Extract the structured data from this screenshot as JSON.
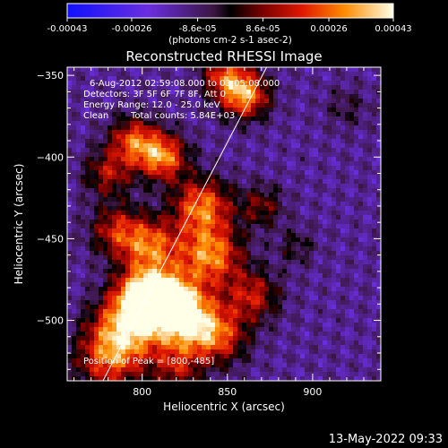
{
  "chart_data": {
    "type": "heatmap",
    "title": "Reconstructed RHESSI Image",
    "xlabel": "Heliocentric X (arcsec)",
    "ylabel": "Heliocentric Y (arcsec)",
    "xlim": [
      756,
      940
    ],
    "ylim": [
      -537,
      -345
    ],
    "x_ticks": [
      800,
      850,
      900
    ],
    "y_ticks": [
      -350,
      -400,
      -450,
      -500
    ],
    "colorbar": {
      "ticks": [
        -0.00043,
        -0.00026,
        -8.6e-05,
        8.6e-05,
        0.00026,
        0.00043
      ],
      "tick_labels": [
        "-0.00043",
        "-0.00026",
        "-8.6e-05",
        "8.6e-05",
        "0.00026",
        "0.00043"
      ],
      "unit_label": "(photons cm-2 s-1 asec-2)",
      "range": [
        -0.00043,
        0.00043
      ]
    },
    "annotations": {
      "time_range": "6-Aug-2012 02:59:08.000 to 03:05:08.000",
      "detectors": "Detectors: 3F 5F 6F 7F 8F, Att 0",
      "energy_range": "Energy Range: 12.0 - 25.0 keV",
      "method": "Clean",
      "total_counts": "Total counts: 5.84E+03",
      "peak": "Position of Peak = [800,-485]"
    },
    "peak_position": [
      800,
      -485
    ],
    "limb_line": [
      [
        777,
        -537
      ],
      [
        873,
        -345
      ]
    ],
    "grid": false,
    "sources": [
      {
        "x": 800,
        "y": -485,
        "intensity": 1.0,
        "sigma": 11
      },
      {
        "x": 815,
        "y": -487,
        "intensity": 0.8,
        "sigma": 12
      },
      {
        "x": 825,
        "y": -500,
        "intensity": 0.95,
        "sigma": 14
      },
      {
        "x": 790,
        "y": -505,
        "intensity": 0.85,
        "sigma": 14
      },
      {
        "x": 780,
        "y": -525,
        "intensity": 0.6,
        "sigma": 14
      },
      {
        "x": 805,
        "y": -455,
        "intensity": 0.75,
        "sigma": 12
      },
      {
        "x": 840,
        "y": -460,
        "intensity": 0.85,
        "sigma": 13
      },
      {
        "x": 835,
        "y": -430,
        "intensity": 0.8,
        "sigma": 12
      },
      {
        "x": 812,
        "y": -400,
        "intensity": 0.85,
        "sigma": 10
      },
      {
        "x": 795,
        "y": -390,
        "intensity": 0.7,
        "sigma": 10
      },
      {
        "x": 780,
        "y": -410,
        "intensity": 0.5,
        "sigma": 10
      },
      {
        "x": 860,
        "y": -362,
        "intensity": 0.9,
        "sigma": 10
      },
      {
        "x": 848,
        "y": -350,
        "intensity": 0.6,
        "sigma": 9
      },
      {
        "x": 865,
        "y": -485,
        "intensity": 0.55,
        "sigma": 11
      },
      {
        "x": 845,
        "y": -510,
        "intensity": 0.6,
        "sigma": 12
      },
      {
        "x": 785,
        "y": -445,
        "intensity": 0.55,
        "sigma": 11
      },
      {
        "x": 870,
        "y": -430,
        "intensity": 0.4,
        "sigma": 9
      },
      {
        "x": 820,
        "y": -530,
        "intensity": 0.45,
        "sigma": 10
      },
      {
        "x": 890,
        "y": -455,
        "intensity": 0.25,
        "sigma": 8
      },
      {
        "x": 920,
        "y": -370,
        "intensity": 0.2,
        "sigma": 9
      }
    ]
  },
  "footer_date": "13-May-2022 09:33"
}
